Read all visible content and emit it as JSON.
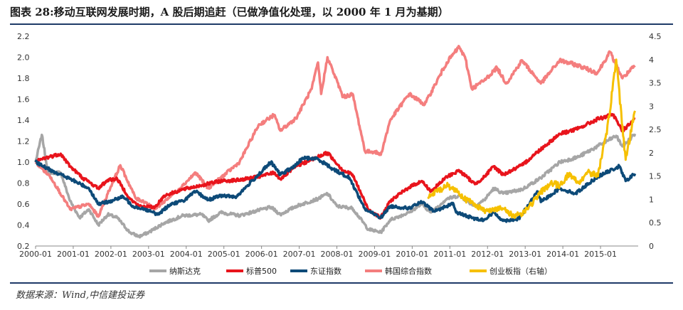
{
  "header": {
    "title": "图表 28:移动互联网发展时期，A 股后期追赶（已做净值化处理，以 2000 年 1 月为基期）"
  },
  "footer": {
    "source": "数据来源：Wind,中信建投证券"
  },
  "colors": {
    "nasdaq": "#a6a6a6",
    "sp500": "#e8141c",
    "sse": "#0d4a78",
    "kospi": "#f47e7e",
    "chinext": "#f6c000",
    "rule": "#1f3a68"
  },
  "chart_data": {
    "type": "line",
    "x_ticks": [
      "2000-01",
      "2001-01",
      "2002-01",
      "2003-01",
      "2004-01",
      "2005-01",
      "2006-01",
      "2007-01",
      "2008-01",
      "2009-01",
      "2010-01",
      "2011-01",
      "2012-01",
      "2013-01",
      "2014-01",
      "2015-01"
    ],
    "ylim_left": [
      0.2,
      2.2
    ],
    "yticks_left": [
      "0.2",
      "0.4",
      "0.6",
      "0.8",
      "1.0",
      "1.2",
      "1.4",
      "1.6",
      "1.8",
      "2.0",
      "2.2"
    ],
    "ylim_right": [
      0,
      4.5
    ],
    "yticks_right": [
      "0",
      "0.5",
      "1",
      "1.5",
      "2",
      "2.5",
      "3",
      "3.5",
      "4",
      "4.5"
    ],
    "legend_position": "bottom",
    "series": [
      {
        "name": "纳斯达克",
        "key": "nasdaq",
        "axis": "left",
        "points": [
          [
            "2000-01",
            1.0
          ],
          [
            "2000-03",
            1.26
          ],
          [
            "2000-05",
            0.9
          ],
          [
            "2000-09",
            0.9
          ],
          [
            "2000-12",
            0.63
          ],
          [
            "2001-03",
            0.47
          ],
          [
            "2001-06",
            0.55
          ],
          [
            "2001-09",
            0.4
          ],
          [
            "2001-12",
            0.5
          ],
          [
            "2002-03",
            0.47
          ],
          [
            "2002-07",
            0.33
          ],
          [
            "2002-10",
            0.29
          ],
          [
            "2003-01",
            0.33
          ],
          [
            "2003-06",
            0.42
          ],
          [
            "2003-12",
            0.49
          ],
          [
            "2004-06",
            0.5
          ],
          [
            "2004-08",
            0.44
          ],
          [
            "2004-12",
            0.52
          ],
          [
            "2005-06",
            0.49
          ],
          [
            "2005-12",
            0.54
          ],
          [
            "2006-04",
            0.57
          ],
          [
            "2006-07",
            0.5
          ],
          [
            "2006-12",
            0.58
          ],
          [
            "2007-07",
            0.65
          ],
          [
            "2007-10",
            0.7
          ],
          [
            "2008-01",
            0.58
          ],
          [
            "2008-06",
            0.56
          ],
          [
            "2008-11",
            0.36
          ],
          [
            "2009-03",
            0.33
          ],
          [
            "2009-06",
            0.45
          ],
          [
            "2009-12",
            0.52
          ],
          [
            "2010-04",
            0.6
          ],
          [
            "2010-07",
            0.52
          ],
          [
            "2010-12",
            0.65
          ],
          [
            "2011-04",
            0.68
          ],
          [
            "2011-09",
            0.58
          ],
          [
            "2011-12",
            0.64
          ],
          [
            "2012-03",
            0.75
          ],
          [
            "2012-06",
            0.7
          ],
          [
            "2012-12",
            0.74
          ],
          [
            "2013-06",
            0.85
          ],
          [
            "2013-12",
            1.0
          ],
          [
            "2014-06",
            1.05
          ],
          [
            "2014-12",
            1.15
          ],
          [
            "2015-06",
            1.25
          ],
          [
            "2015-08",
            1.15
          ],
          [
            "2015-12",
            1.27
          ]
        ]
      },
      {
        "name": "标普500",
        "key": "sp500",
        "axis": "left",
        "points": [
          [
            "2000-01",
            1.0
          ],
          [
            "2000-03",
            1.03
          ],
          [
            "2000-09",
            1.08
          ],
          [
            "2000-12",
            0.96
          ],
          [
            "2001-04",
            0.85
          ],
          [
            "2001-09",
            0.75
          ],
          [
            "2001-12",
            0.83
          ],
          [
            "2002-03",
            0.84
          ],
          [
            "2002-07",
            0.65
          ],
          [
            "2002-10",
            0.58
          ],
          [
            "2003-03",
            0.57
          ],
          [
            "2003-06",
            0.68
          ],
          [
            "2003-12",
            0.74
          ],
          [
            "2004-06",
            0.78
          ],
          [
            "2004-12",
            0.82
          ],
          [
            "2005-06",
            0.83
          ],
          [
            "2005-12",
            0.86
          ],
          [
            "2006-05",
            0.9
          ],
          [
            "2006-07",
            0.84
          ],
          [
            "2006-12",
            0.96
          ],
          [
            "2007-07",
            1.05
          ],
          [
            "2007-10",
            1.09
          ],
          [
            "2008-03",
            0.92
          ],
          [
            "2008-06",
            0.88
          ],
          [
            "2008-11",
            0.55
          ],
          [
            "2009-03",
            0.47
          ],
          [
            "2009-06",
            0.63
          ],
          [
            "2009-12",
            0.76
          ],
          [
            "2010-04",
            0.82
          ],
          [
            "2010-07",
            0.72
          ],
          [
            "2010-12",
            0.86
          ],
          [
            "2011-04",
            0.92
          ],
          [
            "2011-09",
            0.79
          ],
          [
            "2011-12",
            0.86
          ],
          [
            "2012-03",
            0.96
          ],
          [
            "2012-06",
            0.88
          ],
          [
            "2012-12",
            0.97
          ],
          [
            "2013-05",
            1.1
          ],
          [
            "2013-12",
            1.27
          ],
          [
            "2014-06",
            1.32
          ],
          [
            "2014-12",
            1.41
          ],
          [
            "2015-05",
            1.45
          ],
          [
            "2015-08",
            1.3
          ],
          [
            "2015-12",
            1.41
          ]
        ]
      },
      {
        "name": "东证指数",
        "key": "sse",
        "axis": "left",
        "points": [
          [
            "2000-01",
            1.0
          ],
          [
            "2000-04",
            0.95
          ],
          [
            "2000-12",
            0.84
          ],
          [
            "2001-06",
            0.75
          ],
          [
            "2001-09",
            0.6
          ],
          [
            "2001-12",
            0.62
          ],
          [
            "2002-05",
            0.67
          ],
          [
            "2002-08",
            0.58
          ],
          [
            "2002-12",
            0.55
          ],
          [
            "2003-04",
            0.5
          ],
          [
            "2003-08",
            0.6
          ],
          [
            "2003-12",
            0.63
          ],
          [
            "2004-04",
            0.72
          ],
          [
            "2004-08",
            0.64
          ],
          [
            "2004-12",
            0.68
          ],
          [
            "2005-05",
            0.67
          ],
          [
            "2005-12",
            0.88
          ],
          [
            "2006-04",
            1.0
          ],
          [
            "2006-07",
            0.88
          ],
          [
            "2006-12",
            0.97
          ],
          [
            "2007-02",
            1.04
          ],
          [
            "2007-07",
            1.03
          ],
          [
            "2007-12",
            0.93
          ],
          [
            "2008-05",
            0.85
          ],
          [
            "2008-10",
            0.55
          ],
          [
            "2009-03",
            0.47
          ],
          [
            "2009-06",
            0.58
          ],
          [
            "2009-12",
            0.56
          ],
          [
            "2010-04",
            0.62
          ],
          [
            "2010-08",
            0.53
          ],
          [
            "2010-12",
            0.58
          ],
          [
            "2011-02",
            0.61
          ],
          [
            "2011-03",
            0.52
          ],
          [
            "2011-09",
            0.46
          ],
          [
            "2011-12",
            0.45
          ],
          [
            "2012-03",
            0.52
          ],
          [
            "2012-06",
            0.44
          ],
          [
            "2012-11",
            0.46
          ],
          [
            "2013-05",
            0.72
          ],
          [
            "2013-06",
            0.62
          ],
          [
            "2013-12",
            0.75
          ],
          [
            "2014-05",
            0.7
          ],
          [
            "2014-12",
            0.86
          ],
          [
            "2015-07",
            0.96
          ],
          [
            "2015-09",
            0.82
          ],
          [
            "2015-12",
            0.89
          ]
        ]
      },
      {
        "name": "韩国综合指数",
        "key": "kospi",
        "axis": "left",
        "points": [
          [
            "2000-01",
            1.0
          ],
          [
            "2000-06",
            0.85
          ],
          [
            "2000-12",
            0.55
          ],
          [
            "2001-06",
            0.6
          ],
          [
            "2001-09",
            0.48
          ],
          [
            "2001-12",
            0.7
          ],
          [
            "2002-04",
            0.97
          ],
          [
            "2002-09",
            0.65
          ],
          [
            "2002-12",
            0.62
          ],
          [
            "2003-03",
            0.55
          ],
          [
            "2003-09",
            0.7
          ],
          [
            "2003-12",
            0.78
          ],
          [
            "2004-04",
            0.9
          ],
          [
            "2004-08",
            0.75
          ],
          [
            "2004-12",
            0.85
          ],
          [
            "2005-06",
            1.0
          ],
          [
            "2005-12",
            1.35
          ],
          [
            "2006-05",
            1.45
          ],
          [
            "2006-07",
            1.3
          ],
          [
            "2006-12",
            1.42
          ],
          [
            "2007-05",
            1.7
          ],
          [
            "2007-07",
            1.95
          ],
          [
            "2007-08",
            1.65
          ],
          [
            "2007-10",
            2.0
          ],
          [
            "2008-03",
            1.62
          ],
          [
            "2008-06",
            1.65
          ],
          [
            "2008-10",
            1.1
          ],
          [
            "2009-01",
            1.1
          ],
          [
            "2009-03",
            1.07
          ],
          [
            "2009-06",
            1.4
          ],
          [
            "2009-12",
            1.65
          ],
          [
            "2010-05",
            1.55
          ],
          [
            "2010-12",
            1.95
          ],
          [
            "2011-04",
            2.1
          ],
          [
            "2011-06",
            1.98
          ],
          [
            "2011-08",
            1.7
          ],
          [
            "2011-12",
            1.78
          ],
          [
            "2012-04",
            1.9
          ],
          [
            "2012-07",
            1.75
          ],
          [
            "2012-12",
            1.97
          ],
          [
            "2013-06",
            1.75
          ],
          [
            "2013-12",
            1.97
          ],
          [
            "2014-06",
            1.92
          ],
          [
            "2014-12",
            1.85
          ],
          [
            "2015-04",
            2.05
          ],
          [
            "2015-08",
            1.8
          ],
          [
            "2015-12",
            1.92
          ]
        ]
      },
      {
        "name": "创业板指（右轴）",
        "key": "chinext",
        "axis": "right",
        "points": [
          [
            "2010-06",
            1.05
          ],
          [
            "2010-12",
            1.3
          ],
          [
            "2011-03",
            1.2
          ],
          [
            "2011-06",
            1.0
          ],
          [
            "2011-09",
            0.9
          ],
          [
            "2011-12",
            0.75
          ],
          [
            "2012-03",
            0.8
          ],
          [
            "2012-06",
            0.8
          ],
          [
            "2012-09",
            0.65
          ],
          [
            "2012-12",
            0.7
          ],
          [
            "2013-03",
            0.9
          ],
          [
            "2013-06",
            1.15
          ],
          [
            "2013-09",
            1.35
          ],
          [
            "2013-12",
            1.3
          ],
          [
            "2014-03",
            1.55
          ],
          [
            "2014-06",
            1.35
          ],
          [
            "2014-09",
            1.6
          ],
          [
            "2014-12",
            1.5
          ],
          [
            "2015-03",
            2.4
          ],
          [
            "2015-06",
            4.0
          ],
          [
            "2015-09",
            1.85
          ],
          [
            "2015-12",
            2.9
          ]
        ]
      }
    ]
  }
}
